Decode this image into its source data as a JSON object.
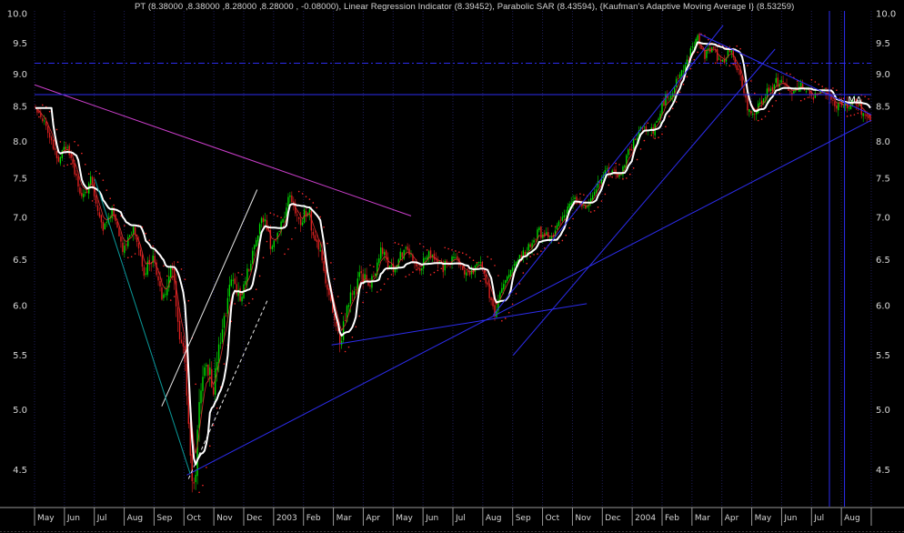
{
  "title": "PT (8.38000 ,8.38000 ,8.28000 ,8.28000 , -0.08000),  Linear Regression Indicator (8.39452), Parabolic SAR (8.43594), {Kaufman's Adaptive Moving Average I} (8.53259)",
  "chart_data": {
    "type": "candlestick",
    "instrument": "PT",
    "last_ohlc": {
      "open": 8.38,
      "high": 8.38,
      "low": 8.28,
      "close": 8.28,
      "change": -0.08
    },
    "indicators": [
      {
        "name": "Linear Regression Indicator",
        "value": 8.39452
      },
      {
        "name": "Parabolic SAR",
        "value": 8.43594
      },
      {
        "name": "Kaufman's Adaptive Moving Average I",
        "value": 8.53259
      }
    ],
    "y_axis": {
      "scale": "log",
      "top_value": 10.05,
      "bottom_value": 4.22,
      "ticks": [
        10.0,
        9.5,
        9.0,
        8.5,
        8.0,
        7.5,
        7.0,
        6.5,
        6.0,
        5.5,
        5.0,
        4.5
      ]
    },
    "x_axis": {
      "labels": [
        "May",
        "Jun",
        "Jul",
        "Aug",
        "Sep",
        "Oct",
        "Nov",
        "Dec",
        "2003",
        "Feb",
        "Mar",
        "Apr",
        "May",
        "Jun",
        "Jul",
        "Aug",
        "Sep",
        "Oct",
        "Nov",
        "Dec",
        "2004",
        "Feb",
        "Mar",
        "Apr",
        "May",
        "Jun",
        "Jul",
        "Aug"
      ]
    },
    "num_bars": 470,
    "price_path": [
      [
        0.0,
        8.5
      ],
      [
        0.012,
        8.25
      ],
      [
        0.027,
        7.72
      ],
      [
        0.038,
        7.95
      ],
      [
        0.055,
        7.25
      ],
      [
        0.066,
        7.48
      ],
      [
        0.08,
        6.85
      ],
      [
        0.092,
        7.12
      ],
      [
        0.105,
        6.58
      ],
      [
        0.117,
        6.88
      ],
      [
        0.13,
        6.32
      ],
      [
        0.141,
        6.58
      ],
      [
        0.152,
        6.05
      ],
      [
        0.163,
        6.42
      ],
      [
        0.172,
        5.8
      ],
      [
        0.179,
        5.45
      ],
      [
        0.186,
        4.52
      ],
      [
        0.19,
        4.4
      ],
      [
        0.196,
        4.95
      ],
      [
        0.204,
        5.45
      ],
      [
        0.213,
        5.18
      ],
      [
        0.224,
        5.78
      ],
      [
        0.235,
        6.28
      ],
      [
        0.247,
        6.08
      ],
      [
        0.259,
        6.55
      ],
      [
        0.272,
        7.02
      ],
      [
        0.283,
        6.62
      ],
      [
        0.294,
        6.95
      ],
      [
        0.306,
        7.28
      ],
      [
        0.317,
        6.92
      ],
      [
        0.327,
        7.08
      ],
      [
        0.341,
        6.52
      ],
      [
        0.353,
        6.05
      ],
      [
        0.364,
        5.62
      ],
      [
        0.375,
        5.98
      ],
      [
        0.388,
        6.38
      ],
      [
        0.4,
        6.18
      ],
      [
        0.414,
        6.58
      ],
      [
        0.428,
        6.42
      ],
      [
        0.443,
        6.62
      ],
      [
        0.458,
        6.38
      ],
      [
        0.472,
        6.55
      ],
      [
        0.488,
        6.42
      ],
      [
        0.503,
        6.52
      ],
      [
        0.518,
        6.32
      ],
      [
        0.532,
        6.45
      ],
      [
        0.543,
        6.15
      ],
      [
        0.55,
        5.92
      ],
      [
        0.56,
        6.22
      ],
      [
        0.573,
        6.42
      ],
      [
        0.588,
        6.58
      ],
      [
        0.603,
        6.82
      ],
      [
        0.617,
        6.72
      ],
      [
        0.632,
        7.02
      ],
      [
        0.646,
        7.22
      ],
      [
        0.659,
        7.08
      ],
      [
        0.673,
        7.42
      ],
      [
        0.686,
        7.62
      ],
      [
        0.699,
        7.52
      ],
      [
        0.713,
        7.92
      ],
      [
        0.726,
        8.22
      ],
      [
        0.739,
        8.12
      ],
      [
        0.751,
        8.52
      ],
      [
        0.763,
        8.78
      ],
      [
        0.774,
        9.05
      ],
      [
        0.784,
        9.32
      ],
      [
        0.793,
        9.55
      ],
      [
        0.801,
        9.32
      ],
      [
        0.811,
        9.48
      ],
      [
        0.821,
        9.18
      ],
      [
        0.832,
        9.35
      ],
      [
        0.843,
        8.98
      ],
      [
        0.852,
        8.55
      ],
      [
        0.858,
        8.28
      ],
      [
        0.868,
        8.58
      ],
      [
        0.88,
        8.78
      ],
      [
        0.893,
        8.88
      ],
      [
        0.906,
        8.7
      ],
      [
        0.918,
        8.82
      ],
      [
        0.931,
        8.62
      ],
      [
        0.944,
        8.75
      ],
      [
        0.957,
        8.58
      ],
      [
        0.97,
        8.48
      ],
      [
        0.984,
        8.55
      ],
      [
        1.0,
        8.3
      ]
    ],
    "trendlines": [
      {
        "name": "downtrend-magenta",
        "color": "trend_magenta",
        "x1": 0.0,
        "p1": 8.83,
        "x2": 0.45,
        "p2": 7.02,
        "dash": ""
      },
      {
        "name": "major-uptrend",
        "color": "trend_blue",
        "x1": 0.182,
        "p1": 4.46,
        "x2": 1.0,
        "p2": 8.3,
        "dash": ""
      },
      {
        "name": "secondary-uptrend",
        "color": "trend_blue",
        "x1": 0.355,
        "p1": 5.6,
        "x2": 0.66,
        "p2": 6.02,
        "dash": ""
      },
      {
        "name": "channel-upper",
        "color": "trend_blue",
        "x1": 0.548,
        "p1": 5.9,
        "x2": 0.823,
        "p2": 9.8,
        "dash": ""
      },
      {
        "name": "channel-lower",
        "color": "trend_blue",
        "x1": 0.572,
        "p1": 5.5,
        "x2": 0.885,
        "p2": 9.4,
        "dash": ""
      },
      {
        "name": "descending-wedge",
        "color": "trend_blue",
        "x1": 0.795,
        "p1": 9.65,
        "x2": 1.0,
        "p2": 8.38,
        "dash": ""
      },
      {
        "name": "recovery-line",
        "color": "trend_white",
        "x1": 0.152,
        "p1": 5.03,
        "x2": 0.266,
        "p2": 7.35,
        "dash": ""
      },
      {
        "name": "recovery-line-dashed",
        "color": "trend_white",
        "x1": 0.184,
        "p1": 4.43,
        "x2": 0.278,
        "p2": 6.05,
        "dash": "4,3"
      },
      {
        "name": "capitulation-line",
        "color": "trend_teal",
        "x1": 0.072,
        "p1": 7.49,
        "x2": 0.186,
        "p2": 4.47,
        "dash": ""
      }
    ],
    "hlines": [
      {
        "name": "resistance-solid",
        "p": 8.68,
        "dash": ""
      },
      {
        "name": "resistance-dashed",
        "p": 9.17,
        "dash": "7,3,2,3"
      }
    ],
    "vlines": [
      {
        "name": "time-marker-1",
        "x": 0.95
      },
      {
        "name": "time-marker-2",
        "x": 0.968
      }
    ],
    "annotations": [
      {
        "text": "MA",
        "x": 0.972,
        "p": 8.56
      }
    ],
    "colors": {
      "background": "#000000",
      "up_candle": "#00dc00",
      "down_candle": "#e02020",
      "kama": "#ffffff",
      "lri": "#d83030",
      "sar": "#ff2828",
      "trend_blue": "#2d2df0",
      "trend_magenta": "#cc3fcc",
      "trend_teal": "#0a9a9a",
      "trend_white": "#e8e8e8",
      "grid": "#1e1e5a",
      "axis_text": "#d8d8d8",
      "axis_line": "#999999"
    }
  }
}
